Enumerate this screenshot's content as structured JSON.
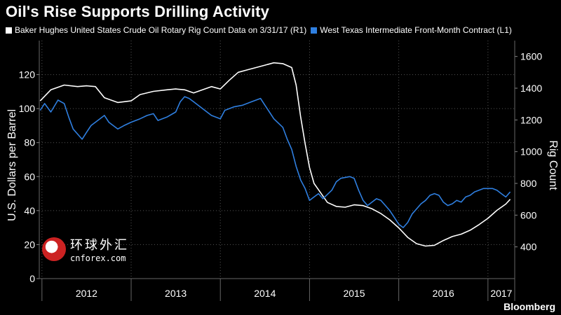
{
  "header": {
    "title": "Oil's Rise Supports Drilling Activity"
  },
  "legend": {
    "items": [
      {
        "label": "Baker Hughes United States Crude Oil Rotary Rig Count Data  on 3/31/17 (R1)",
        "color": "#ffffff"
      },
      {
        "label": "West Texas Intermediate Front-Month Contract (L1)",
        "color": "#2f7fe0"
      }
    ]
  },
  "footer": {
    "brand": "Bloomberg"
  },
  "watermark": {
    "cn": "环球外汇",
    "en": "cnforex.com"
  },
  "chart_data": {
    "type": "line",
    "ylabel_left": "U.S. Dollars per Barrel",
    "ylabel_right": "Rig Count",
    "ylim_left": [
      0,
      140
    ],
    "ylim_right": [
      200,
      1700
    ],
    "left_ticks": [
      0,
      20,
      40,
      60,
      80,
      100,
      120
    ],
    "right_ticks": [
      400,
      600,
      800,
      1000,
      1200,
      1400,
      1600
    ],
    "x_labels": [
      "2012",
      "2013",
      "2014",
      "2015",
      "2016",
      "2017"
    ],
    "x_range": [
      2011.97,
      2017.3
    ],
    "grid": true,
    "series": [
      {
        "name": "Baker Hughes United States Crude Oil Rotary Rig Count Data  on 3/31/17 (R1)",
        "axis": "right",
        "color": "#ffffff",
        "x": [
          2011.98,
          2012.1,
          2012.25,
          2012.4,
          2012.5,
          2012.6,
          2012.7,
          2012.85,
          2013.0,
          2013.1,
          2013.25,
          2013.4,
          2013.5,
          2013.6,
          2013.7,
          2013.8,
          2013.9,
          2014.0,
          2014.1,
          2014.2,
          2014.3,
          2014.4,
          2014.5,
          2014.6,
          2014.7,
          2014.8,
          2014.85,
          2014.9,
          2014.95,
          2015.0,
          2015.05,
          2015.1,
          2015.15,
          2015.2,
          2015.3,
          2015.4,
          2015.5,
          2015.6,
          2015.7,
          2015.8,
          2015.9,
          2016.0,
          2016.1,
          2016.2,
          2016.3,
          2016.4,
          2016.5,
          2016.6,
          2016.7,
          2016.8,
          2016.9,
          2017.0,
          2017.1,
          2017.2,
          2017.25
        ],
        "values": [
          1320,
          1390,
          1420,
          1410,
          1415,
          1410,
          1340,
          1310,
          1320,
          1360,
          1380,
          1390,
          1395,
          1390,
          1370,
          1390,
          1410,
          1395,
          1450,
          1500,
          1515,
          1530,
          1545,
          1560,
          1555,
          1530,
          1420,
          1220,
          1050,
          900,
          800,
          760,
          720,
          680,
          655,
          650,
          665,
          660,
          640,
          610,
          570,
          520,
          460,
          420,
          405,
          410,
          440,
          465,
          480,
          505,
          540,
          580,
          630,
          670,
          700
        ]
      },
      {
        "name": "West Texas Intermediate Front-Month Contract (L1)",
        "axis": "left",
        "color": "#2f7fe0",
        "x": [
          2011.98,
          2012.03,
          2012.1,
          2012.18,
          2012.25,
          2012.3,
          2012.35,
          2012.45,
          2012.5,
          2012.55,
          2012.65,
          2012.7,
          2012.75,
          2012.85,
          2012.92,
          2013.0,
          2013.1,
          2013.18,
          2013.25,
          2013.3,
          2013.4,
          2013.5,
          2013.55,
          2013.6,
          2013.65,
          2013.7,
          2013.8,
          2013.9,
          2014.0,
          2014.05,
          2014.15,
          2014.25,
          2014.35,
          2014.45,
          2014.5,
          2014.55,
          2014.6,
          2014.7,
          2014.75,
          2014.8,
          2014.85,
          2014.9,
          2014.95,
          2015.0,
          2015.05,
          2015.1,
          2015.15,
          2015.25,
          2015.3,
          2015.35,
          2015.45,
          2015.5,
          2015.55,
          2015.6,
          2015.65,
          2015.7,
          2015.75,
          2015.8,
          2015.85,
          2015.9,
          2015.95,
          2016.0,
          2016.05,
          2016.1,
          2016.15,
          2016.2,
          2016.25,
          2016.3,
          2016.35,
          2016.4,
          2016.45,
          2016.5,
          2016.55,
          2016.6,
          2016.65,
          2016.7,
          2016.75,
          2016.8,
          2016.85,
          2016.9,
          2016.95,
          2017.0,
          2017.05,
          2017.1,
          2017.15,
          2017.2,
          2017.25
        ],
        "values": [
          99,
          103,
          98,
          105,
          103,
          95,
          88,
          82,
          86,
          90,
          94,
          96,
          92,
          88,
          90,
          92,
          94,
          96,
          97,
          93,
          95,
          98,
          104,
          107,
          106,
          104,
          100,
          96,
          94,
          99,
          101,
          102,
          104,
          106,
          102,
          98,
          94,
          89,
          82,
          76,
          66,
          58,
          53,
          46,
          48,
          50,
          47,
          52,
          57,
          59,
          60,
          59,
          52,
          46,
          43,
          45,
          47,
          46,
          43,
          40,
          36,
          32,
          30,
          33,
          38,
          41,
          44,
          46,
          49,
          50,
          49,
          45,
          43,
          44,
          46,
          45,
          48,
          49,
          51,
          52,
          53,
          53,
          53,
          52,
          50,
          48,
          51
        ]
      }
    ]
  }
}
